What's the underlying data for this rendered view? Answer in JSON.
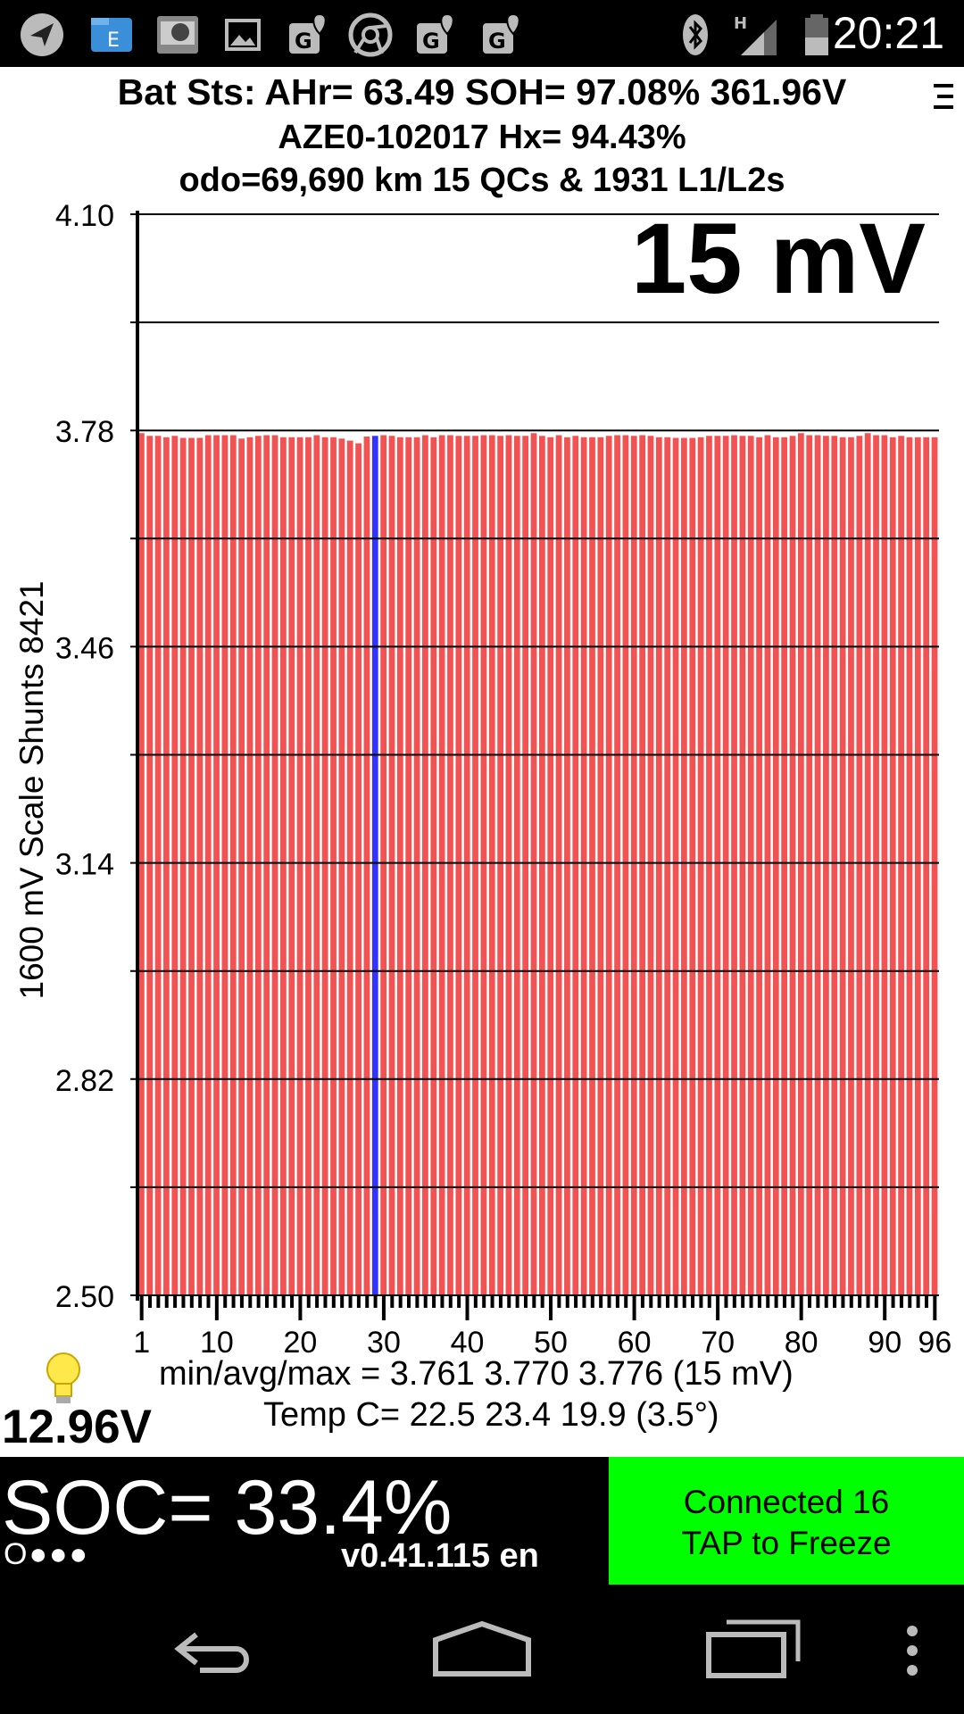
{
  "status_bar": {
    "time": "20:21",
    "left_icons": [
      "navigation-icon",
      "file-manager-icon",
      "scanner-app-icon",
      "gallery-icon",
      "maps-icon",
      "chrome-icon",
      "maps-icon",
      "maps-icon"
    ],
    "right_icons": [
      "bluetooth-icon",
      "signal-h-icon",
      "battery-icon"
    ]
  },
  "header": {
    "line1": "Bat Sts: AHr= 63.49 SOH= 97.08% 361.96V",
    "line2": "AZE0-102017   Hx= 94.43%",
    "line3": "odo=69,690 km 15 QCs & 1931 L1/L2s"
  },
  "chart_data": {
    "type": "bar",
    "big_label": "15 mV",
    "ylabel": "1600 mV Scale   Shunts 8421",
    "ylim": [
      2.5,
      4.1
    ],
    "ytick_labels": [
      "4.10",
      "3.78",
      "3.46",
      "3.14",
      "2.82",
      "2.50"
    ],
    "xtick_labels": [
      "1",
      "10",
      "20",
      "30",
      "40",
      "50",
      "60",
      "70",
      "80",
      "90",
      "96"
    ],
    "bar_color": "#f25252",
    "highlight_color": "#3333ff",
    "highlight_index": 28,
    "categories": [
      1,
      2,
      3,
      4,
      5,
      6,
      7,
      8,
      9,
      10,
      11,
      12,
      13,
      14,
      15,
      16,
      17,
      18,
      19,
      20,
      21,
      22,
      23,
      24,
      25,
      26,
      27,
      28,
      29,
      30,
      31,
      32,
      33,
      34,
      35,
      36,
      37,
      38,
      39,
      40,
      41,
      42,
      43,
      44,
      45,
      46,
      47,
      48,
      49,
      50,
      51,
      52,
      53,
      54,
      55,
      56,
      57,
      58,
      59,
      60,
      61,
      62,
      63,
      64,
      65,
      66,
      67,
      68,
      69,
      70,
      71,
      72,
      73,
      74,
      75,
      76,
      77,
      78,
      79,
      80,
      81,
      82,
      83,
      84,
      85,
      86,
      87,
      88,
      89,
      90,
      91,
      92,
      93,
      94,
      95,
      96
    ],
    "values": [
      3.776,
      3.772,
      3.772,
      3.77,
      3.772,
      3.769,
      3.769,
      3.769,
      3.773,
      3.773,
      3.773,
      3.773,
      3.768,
      3.77,
      3.772,
      3.773,
      3.773,
      3.77,
      3.77,
      3.77,
      3.77,
      3.773,
      3.77,
      3.77,
      3.768,
      3.765,
      3.761,
      3.771,
      3.772,
      3.773,
      3.772,
      3.77,
      3.77,
      3.77,
      3.773,
      3.77,
      3.773,
      3.773,
      3.772,
      3.772,
      3.772,
      3.773,
      3.773,
      3.772,
      3.773,
      3.772,
      3.772,
      3.776,
      3.772,
      3.77,
      3.773,
      3.77,
      3.772,
      3.77,
      3.77,
      3.77,
      3.772,
      3.773,
      3.773,
      3.772,
      3.773,
      3.772,
      3.77,
      3.77,
      3.769,
      3.769,
      3.769,
      3.77,
      3.772,
      3.772,
      3.772,
      3.773,
      3.772,
      3.772,
      3.77,
      3.773,
      3.77,
      3.77,
      3.772,
      3.776,
      3.773,
      3.773,
      3.772,
      3.772,
      3.77,
      3.77,
      3.772,
      3.776,
      3.773,
      3.773,
      3.77,
      3.772,
      3.77,
      3.77,
      3.77,
      3.77
    ]
  },
  "stats": {
    "line1": "min/avg/max = 3.761 3.770 3.776  (15 mV)",
    "line2": "Temp C= 22.5  23.4  19.9  (3.5°)",
    "aux_voltage": "12.96V",
    "bulb_icon": "lightbulb-icon"
  },
  "bottom": {
    "soc": "SOC= 33.4%",
    "dots": "O●●●",
    "version": "v0.41.115 en",
    "connect_line1": "Connected 16",
    "connect_line2": "TAP to Freeze",
    "connect_color": "#00ff00"
  },
  "nav_bar": {
    "icons": [
      "back-icon",
      "home-icon",
      "recents-icon",
      "overflow-menu-icon"
    ]
  }
}
